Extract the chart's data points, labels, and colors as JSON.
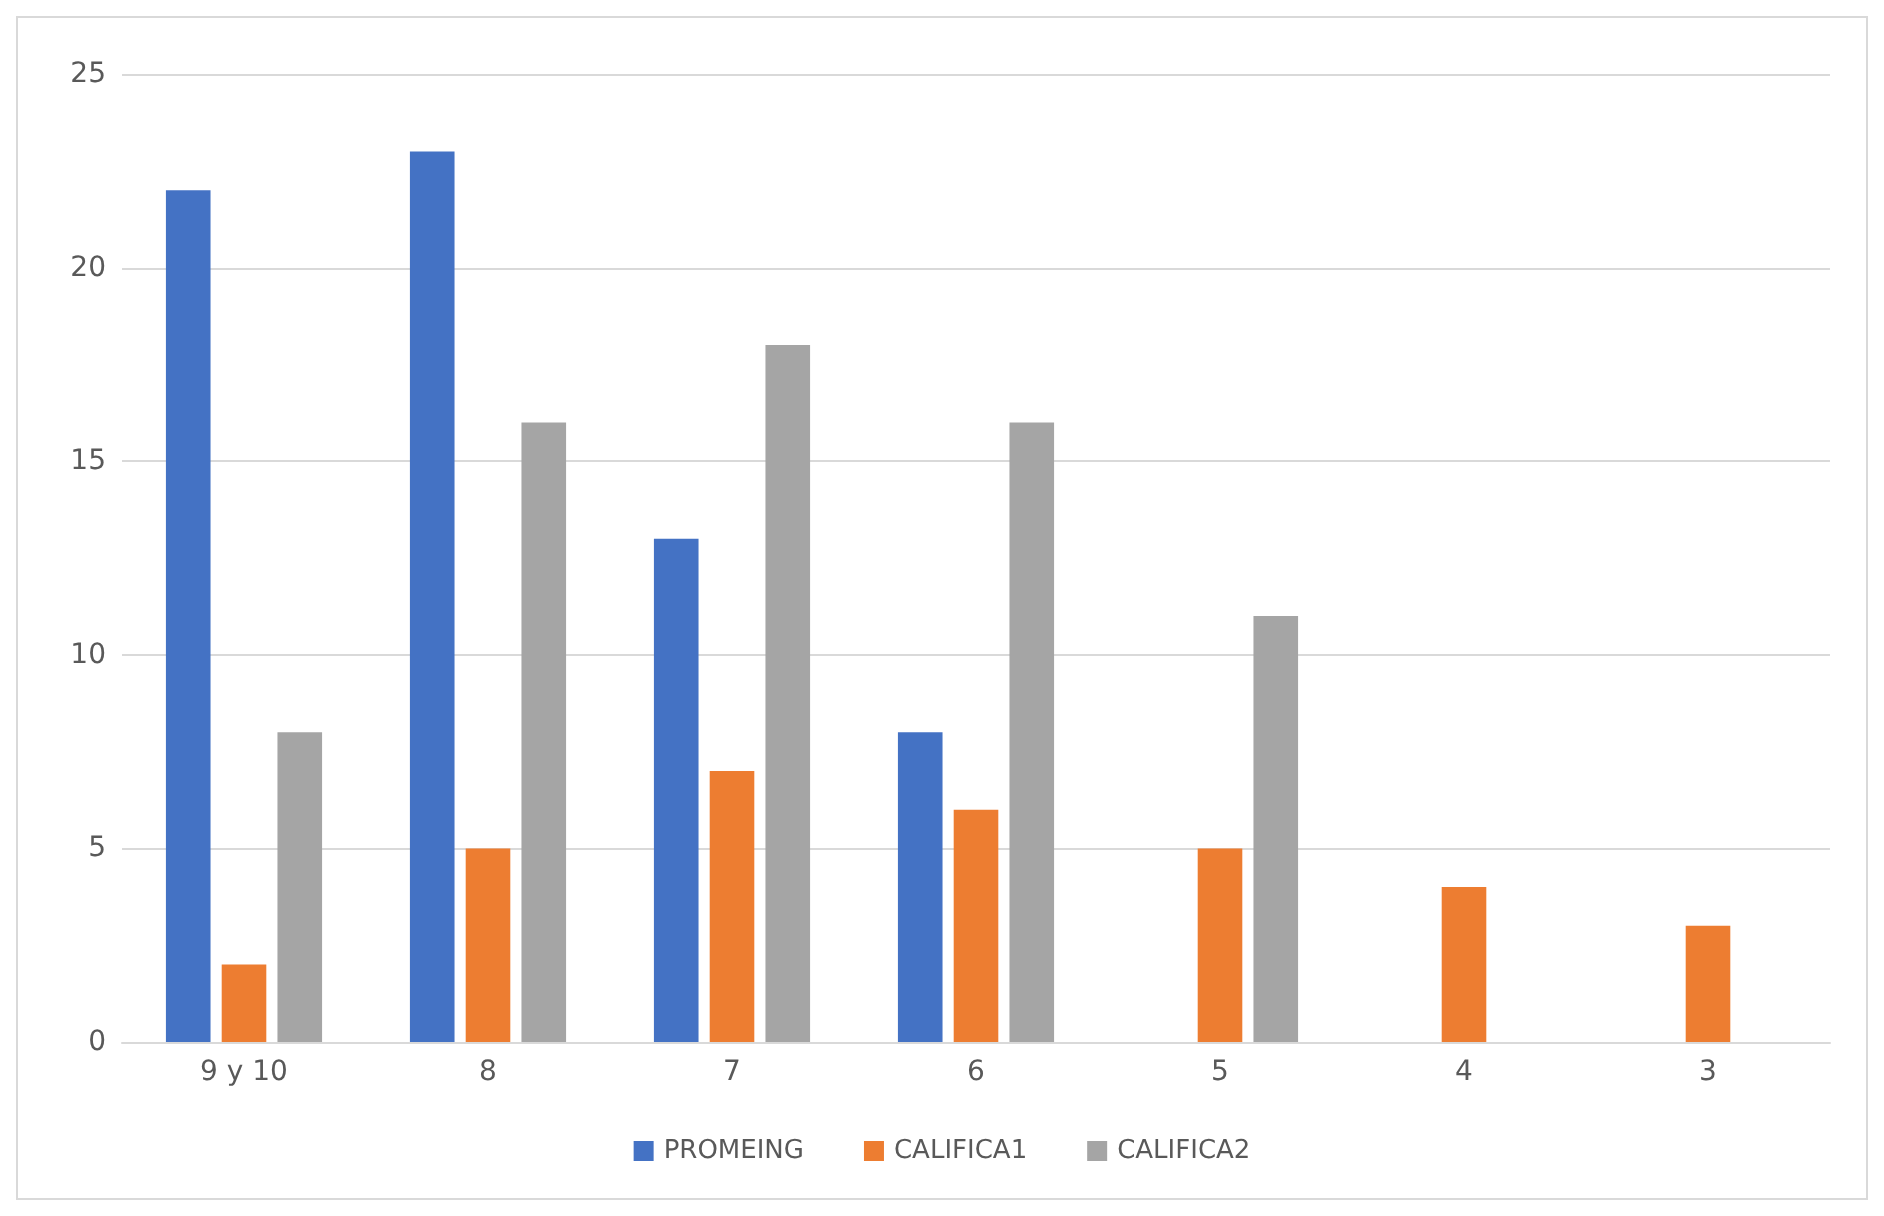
{
  "chart_data": {
    "type": "bar",
    "categories": [
      "9 y 10",
      "8",
      "7",
      "6",
      "5",
      "4",
      "3"
    ],
    "series": [
      {
        "name": "PROMEING",
        "color": "#4472c4",
        "values": [
          22,
          23,
          13,
          8,
          0,
          0,
          0
        ]
      },
      {
        "name": "CALIFICA1",
        "color": "#ed7d31",
        "values": [
          2,
          5,
          7,
          6,
          5,
          4,
          3
        ]
      },
      {
        "name": "CALIFICA2",
        "color": "#a5a5a5",
        "values": [
          8,
          16,
          18,
          16,
          11,
          0,
          0
        ]
      }
    ],
    "ylim": [
      0,
      25
    ],
    "yticks": [
      0,
      5,
      10,
      15,
      20,
      25
    ],
    "grid": "y",
    "legend": "bottom"
  }
}
